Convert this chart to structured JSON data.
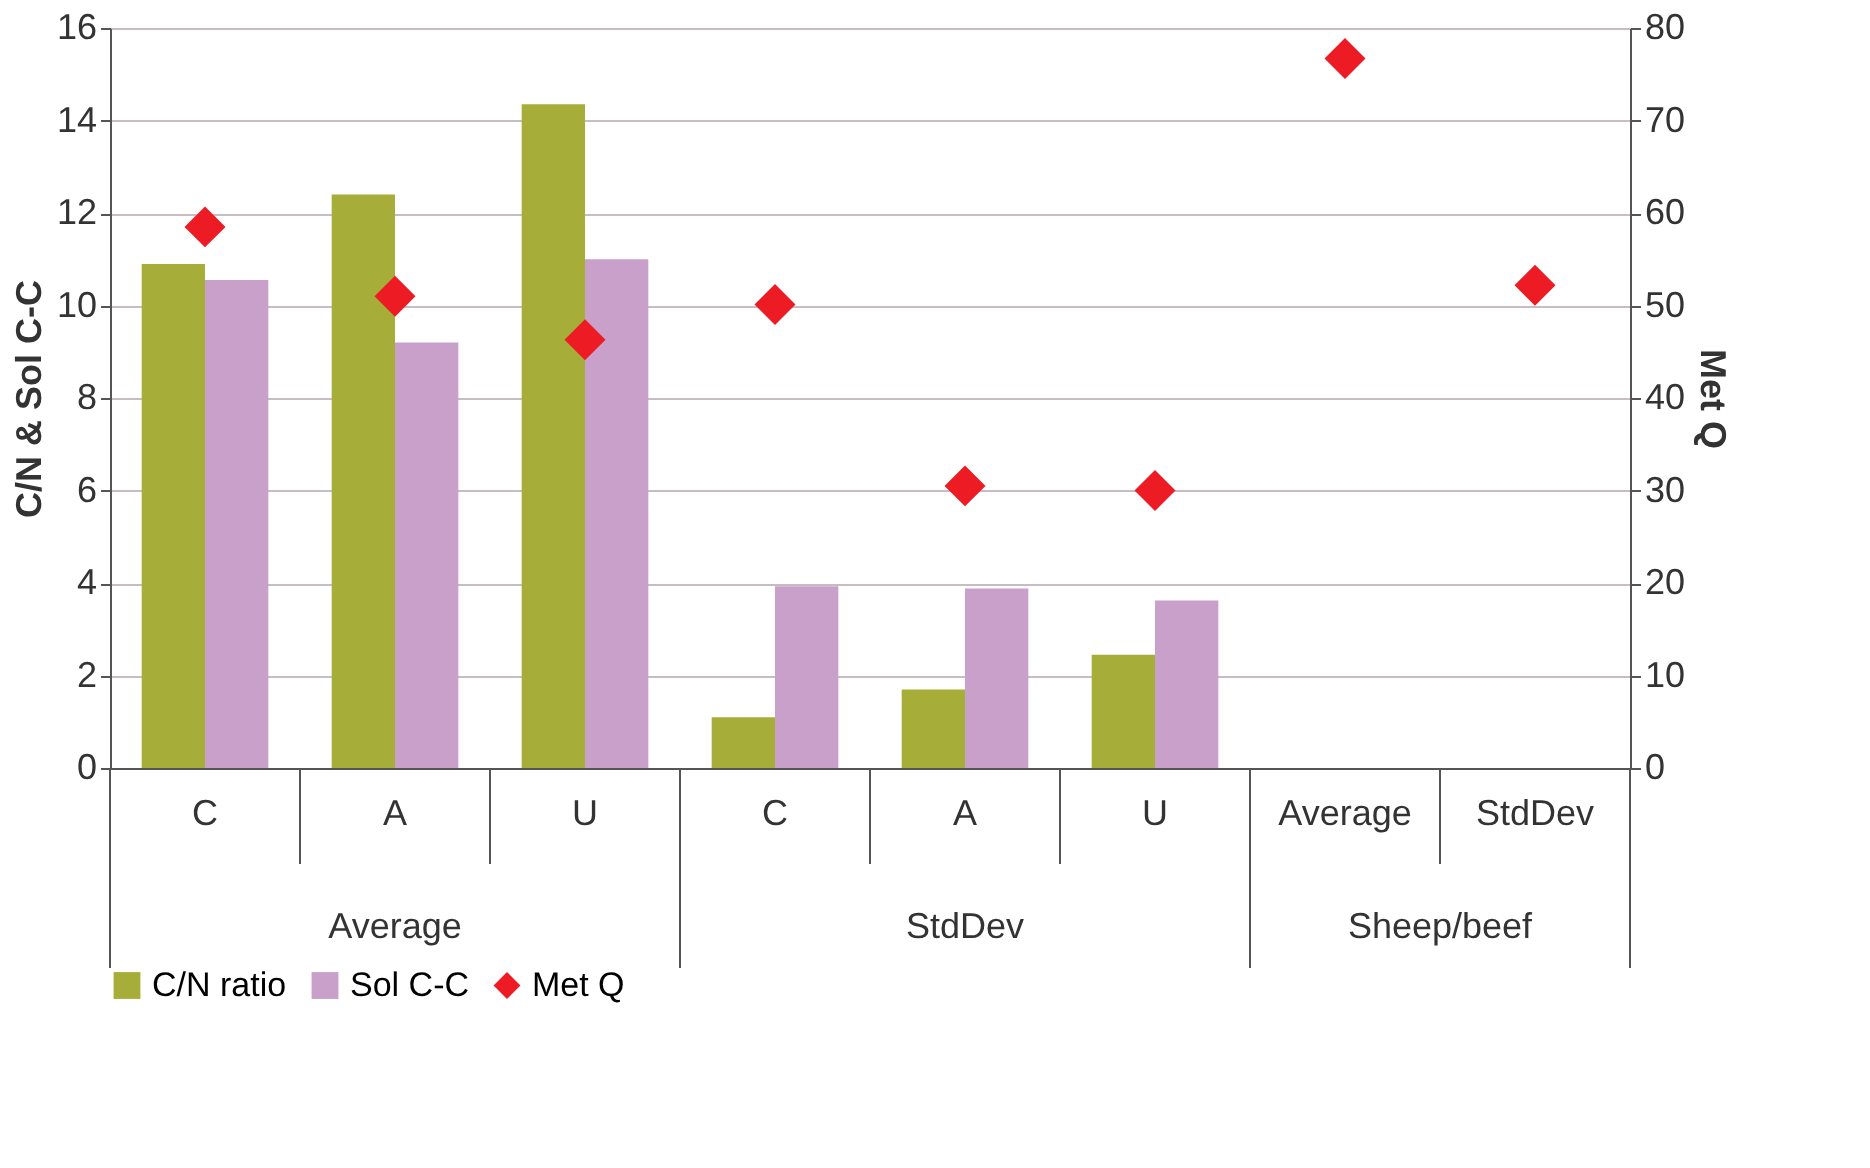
{
  "chart_data": {
    "type": "bar",
    "ylabel": "C/N & Sol C-C",
    "y2label": "Met Q",
    "categories": [
      "C",
      "A",
      "U",
      "C",
      "A",
      "U",
      "Average",
      "StdDev"
    ],
    "series": [
      {
        "name": "C/N ratio",
        "color": "#a6ae39",
        "values": [
          10.9,
          12.4,
          14.35,
          1.1,
          1.7,
          2.45,
          null,
          null
        ]
      },
      {
        "name": "Sol C-C",
        "color": "#c9a0c9",
        "values": [
          10.55,
          9.2,
          11.0,
          3.93,
          3.88,
          3.62,
          null,
          null
        ]
      },
      {
        "name": "Met Q",
        "type": "scatter",
        "axis": "y2",
        "marker": "diamond",
        "color": "#ed1c24",
        "values": [
          58.5,
          51.0,
          46.3,
          50.1,
          30.5,
          30.0,
          76.7,
          52.2
        ]
      }
    ],
    "ylim": [
      0,
      16
    ],
    "yticks": [
      0,
      2,
      4,
      6,
      8,
      10,
      12,
      14,
      16
    ],
    "y2lim": [
      0,
      80
    ],
    "y2ticks": [
      0,
      10,
      20,
      30,
      40,
      50,
      60,
      70,
      80
    ],
    "annotations": [
      "Average",
      "StdDev",
      "Sheep/beef"
    ],
    "grid": "y",
    "legend": "bottom"
  }
}
